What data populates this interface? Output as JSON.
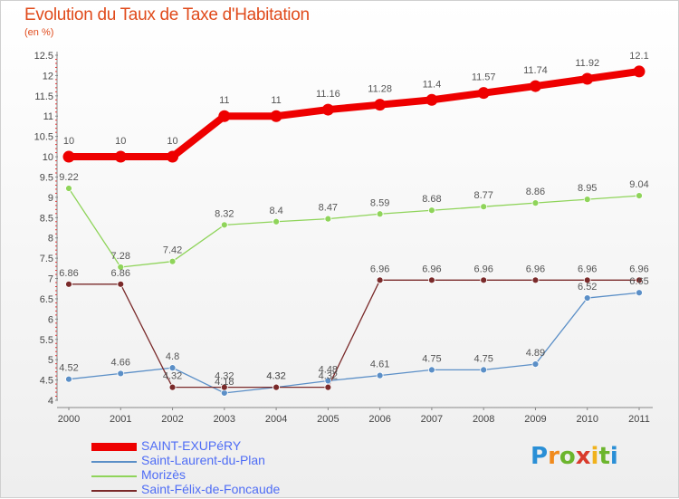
{
  "header": {
    "title": "Evolution du Taux de Taxe d'Habitation",
    "unit": "(en %)"
  },
  "brand": {
    "letters": [
      "P",
      "r",
      "o",
      "x",
      "i",
      "t",
      "i"
    ],
    "colors": [
      "#2a8fd6",
      "#f08a1c",
      "#6cb52d",
      "#d93a2b",
      "#f0b21c",
      "#6cb52d",
      "#2a8fd6"
    ]
  },
  "chart_data": {
    "type": "line",
    "title": "Evolution du Taux de Taxe d'Habitation",
    "ylabel": "(en %)",
    "xlabel": "",
    "x": [
      "2000",
      "2001",
      "2002",
      "2003",
      "2004",
      "2005",
      "2006",
      "2007",
      "2008",
      "2009",
      "2010",
      "2011"
    ],
    "ylim": [
      4,
      12.5
    ],
    "yticks": [
      "4",
      "4.5",
      "5",
      "5.5",
      "6",
      "6.5",
      "7",
      "7.5",
      "8",
      "8.5",
      "9",
      "9.5",
      "10",
      "10.5",
      "11",
      "11.5",
      "12",
      "12.5"
    ],
    "grid": false,
    "legend_position": "bottom-left",
    "series": [
      {
        "name": "SAINT-EXUPéRY",
        "color": "#ee0000",
        "values": [
          10,
          10,
          10,
          11,
          11,
          11.16,
          11.28,
          11.4,
          11.57,
          11.74,
          11.92,
          12.1
        ],
        "labels": [
          "10",
          "10",
          "10",
          "11",
          "11",
          "11.16",
          "11.28",
          "11.4",
          "11.57",
          "11.74",
          "11.92",
          "12.1"
        ]
      },
      {
        "name": "Saint-Laurent-du-Plan",
        "color": "#5b8fc7",
        "values": [
          4.52,
          4.66,
          4.8,
          4.18,
          4.32,
          4.48,
          4.61,
          4.75,
          4.75,
          4.89,
          6.52,
          6.65
        ],
        "labels": [
          "4.52",
          "4.66",
          "4.8",
          "4.18",
          "4.32",
          "4.48",
          "4.61",
          "4.75",
          "4.75",
          "4.89",
          "6.52",
          "6.65"
        ]
      },
      {
        "name": "Morizès",
        "color": "#8fd45a",
        "values": [
          9.22,
          7.28,
          7.42,
          8.32,
          8.4,
          8.47,
          8.59,
          8.68,
          8.77,
          8.86,
          8.95,
          9.04
        ],
        "labels": [
          "9.22",
          "7.28",
          "7.42",
          "8.32",
          "8.4",
          "8.47",
          "8.59",
          "8.68",
          "8.77",
          "8.86",
          "8.95",
          "9.04"
        ]
      },
      {
        "name": "Saint-Félix-de-Foncaude",
        "color": "#7a2a2a",
        "values": [
          6.86,
          6.86,
          4.32,
          4.32,
          4.32,
          4.32,
          6.96,
          6.96,
          6.96,
          6.96,
          6.96,
          6.96
        ],
        "labels": [
          "6.86",
          "6.86",
          "4.32",
          "4.32",
          "4.32",
          "4.32",
          "6.96",
          "6.96",
          "6.96",
          "6.96",
          "6.96",
          "6.96"
        ]
      }
    ]
  }
}
